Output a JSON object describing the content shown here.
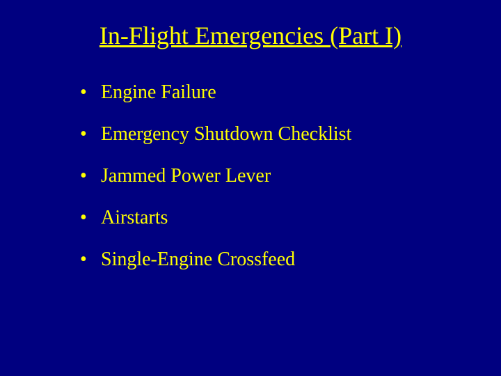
{
  "slide": {
    "background_color": "#000080",
    "text_color": "#ffff00",
    "title": "In-Flight Emergencies (Part I)",
    "title_fontsize": 36,
    "title_underline": true,
    "bullet_fontsize": 28,
    "bullets": [
      "Engine Failure",
      "Emergency Shutdown Checklist",
      "Jammed Power Lever",
      "Airstarts",
      "Single-Engine Crossfeed"
    ]
  }
}
